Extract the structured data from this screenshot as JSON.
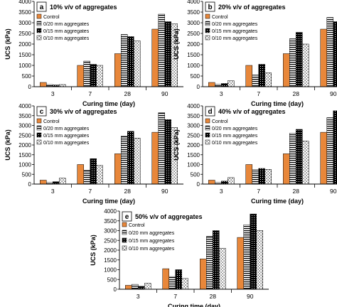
{
  "legend_labels": [
    "Control",
    "0/20 mm aggregates",
    "0/15 mm aggregates",
    "0/10 mm aggregates"
  ],
  "colors": {
    "control": "#e8873a",
    "axis": "#000000",
    "background": "#ffffff"
  },
  "chart_data": [
    {
      "type": "bar",
      "panel_label": "a",
      "title": "10% v/v of aggregates",
      "xlabel": "Curing time (day)",
      "ylabel": "UCS (kPa)",
      "categories": [
        "3",
        "7",
        "28",
        "90"
      ],
      "ylim": [
        0,
        4000
      ],
      "yticks": [
        "0",
        "500",
        "1000",
        "1500",
        "2000",
        "2500",
        "3000",
        "3500",
        "4000"
      ],
      "legend_position": "top-left",
      "grid": false,
      "series": [
        {
          "name": "Control",
          "values": [
            200,
            1000,
            1550,
            2700
          ]
        },
        {
          "name": "0/20 mm aggregates",
          "values": [
            100,
            1200,
            2450,
            3400
          ]
        },
        {
          "name": "0/15 mm aggregates",
          "values": [
            80,
            1050,
            2350,
            3050
          ]
        },
        {
          "name": "0/10 mm aggregates",
          "values": [
            100,
            1000,
            2150,
            2950
          ]
        }
      ]
    },
    {
      "type": "bar",
      "panel_label": "b",
      "title": "20% v/v of aggregates",
      "xlabel": "Curing time (day)",
      "ylabel": "UCS (kPa)",
      "categories": [
        "3",
        "7",
        "28",
        "90"
      ],
      "ylim": [
        0,
        4000
      ],
      "yticks": [
        "0",
        "500",
        "1000",
        "1500",
        "2000",
        "2500",
        "3000",
        "3500",
        "4000"
      ],
      "legend_position": "top-left",
      "grid": false,
      "series": [
        {
          "name": "Control",
          "values": [
            200,
            1000,
            1550,
            2700
          ]
        },
        {
          "name": "0/20 mm aggregates",
          "values": [
            120,
            550,
            2250,
            3250
          ]
        },
        {
          "name": "0/15 mm aggregates",
          "values": [
            150,
            1050,
            2550,
            3050
          ]
        },
        {
          "name": "0/10 mm aggregates",
          "values": [
            280,
            650,
            2000,
            2950
          ]
        }
      ]
    },
    {
      "type": "bar",
      "panel_label": "c",
      "title": "30% v/v of aggregates",
      "xlabel": "Curing time (day)",
      "ylabel": "UCS (kPa)",
      "categories": [
        "3",
        "7",
        "28",
        "90"
      ],
      "ylim": [
        0,
        4000
      ],
      "yticks": [
        "0",
        "500",
        "1000",
        "1500",
        "2000",
        "2500",
        "3000",
        "3500",
        "4000"
      ],
      "legend_position": "top-left",
      "grid": false,
      "series": [
        {
          "name": "Control",
          "values": [
            200,
            1000,
            1550,
            2650
          ]
        },
        {
          "name": "0/20 mm aggregates",
          "values": [
            80,
            700,
            2450,
            3650
          ]
        },
        {
          "name": "0/15 mm aggregates",
          "values": [
            120,
            1300,
            2700,
            3300
          ]
        },
        {
          "name": "0/10 mm aggregates",
          "values": [
            300,
            950,
            2350,
            2900
          ]
        }
      ]
    },
    {
      "type": "bar",
      "panel_label": "d",
      "title": "40% v/v of aggregates",
      "xlabel": "Curing time (day)",
      "ylabel": "UCS (kPa)",
      "categories": [
        "3",
        "7",
        "28",
        "90"
      ],
      "ylim": [
        0,
        4000
      ],
      "yticks": [
        "0",
        "500",
        "1000",
        "1500",
        "2000",
        "2500",
        "3000",
        "3500",
        "4000"
      ],
      "legend_position": "top-left",
      "grid": false,
      "series": [
        {
          "name": "Control",
          "values": [
            200,
            1000,
            1550,
            2650
          ]
        },
        {
          "name": "0/20 mm aggregates",
          "values": [
            100,
            750,
            2600,
            3400
          ]
        },
        {
          "name": "0/15 mm aggregates",
          "values": [
            150,
            800,
            2800,
            3750
          ]
        },
        {
          "name": "0/10 mm aggregates",
          "values": [
            330,
            750,
            2200,
            3350
          ]
        }
      ]
    },
    {
      "type": "bar",
      "panel_label": "e",
      "title": "50% v/v of aggregates",
      "xlabel": "Curing time (day)",
      "ylabel": "UCS (kPa)",
      "categories": [
        "3",
        "7",
        "28",
        "90"
      ],
      "ylim": [
        0,
        4000
      ],
      "yticks": [
        "0",
        "500",
        "1000",
        "1500",
        "2000",
        "2500",
        "3000",
        "3500",
        "4000"
      ],
      "legend_position": "top-left",
      "grid": false,
      "series": [
        {
          "name": "Control",
          "values": [
            200,
            1050,
            1550,
            2650
          ]
        },
        {
          "name": "0/20 mm aggregates",
          "values": [
            250,
            650,
            2700,
            3300
          ]
        },
        {
          "name": "0/15 mm aggregates",
          "values": [
            150,
            1000,
            3000,
            3850
          ]
        },
        {
          "name": "0/10 mm aggregates",
          "values": [
            300,
            550,
            2100,
            3000
          ]
        }
      ]
    }
  ]
}
